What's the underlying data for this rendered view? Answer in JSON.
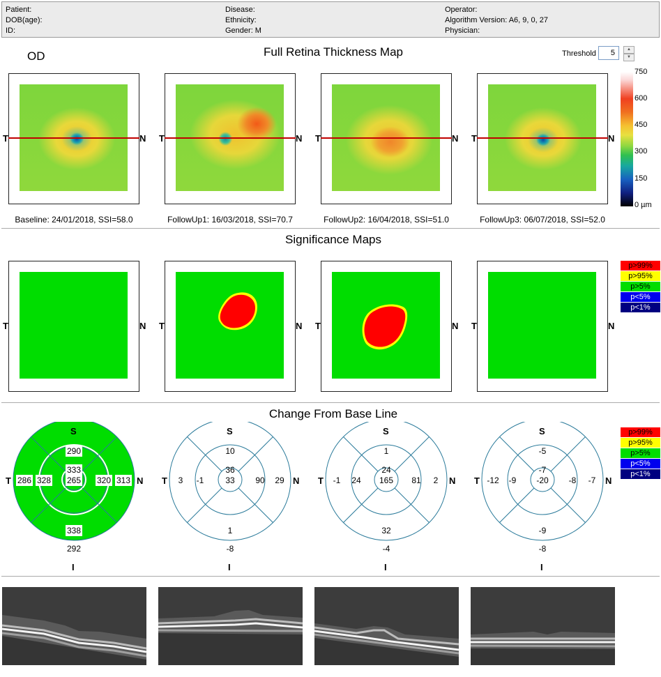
{
  "header": {
    "patient_label": "Patient:",
    "dob_label": "DOB(age):",
    "id_label": "ID:",
    "disease_label": "Disease:",
    "ethnicity_label": "Ethnicity:",
    "gender_label": "Gender: M",
    "operator_label": "Operator:",
    "algorithm_label": "Algorithm Version: A6, 9, 0, 27",
    "physician_label": "Physician:"
  },
  "eye": "OD",
  "thickness": {
    "title": "Full Retina Thickness Map",
    "threshold_label": "Threshold",
    "threshold_value": "5",
    "t_label": "T",
    "n_label": "N",
    "captions": [
      "Baseline: 24/01/2018, SSI=58.0",
      "FollowUp1: 16/03/2018, SSI=70.7",
      "FollowUp2: 16/04/2018, SSI=51.0",
      "FollowUp3: 06/07/2018, SSI=52.0"
    ],
    "scale": [
      "750",
      "600",
      "450",
      "300",
      "150",
      "0 µm"
    ]
  },
  "significance": {
    "title": "Significance Maps",
    "legend": [
      {
        "label": "p>99%",
        "color": "#ff0000",
        "text_color": "#000"
      },
      {
        "label": "p>95%",
        "color": "#ffff00",
        "text_color": "#000"
      },
      {
        "label": "p>5%",
        "color": "#00dd00",
        "text_color": "#000"
      },
      {
        "label": "p<5%",
        "color": "#0000ee",
        "text_color": "#fff"
      },
      {
        "label": "p<1%",
        "color": "#000080",
        "text_color": "#fff"
      }
    ]
  },
  "change": {
    "title": "Change From Base Line",
    "s_label": "S",
    "i_label": "I",
    "t_label": "T",
    "n_label": "N",
    "grids": [
      {
        "outer_s": "290",
        "inner_s": "333",
        "outer_t": "286",
        "inner_t": "328",
        "center": "265",
        "inner_n": "320",
        "outer_n": "313",
        "inner_i": "338",
        "outer_i": "292"
      },
      {
        "outer_s": "10",
        "inner_s": "36",
        "outer_t": "3",
        "inner_t": "-1",
        "center": "33",
        "inner_n": "90",
        "outer_n": "29",
        "inner_i": "1",
        "outer_i": "-8"
      },
      {
        "outer_s": "1",
        "inner_s": "24",
        "outer_t": "-1",
        "inner_t": "24",
        "center": "165",
        "inner_n": "81",
        "outer_n": "2",
        "inner_i": "32",
        "outer_i": "-4"
      },
      {
        "outer_s": "-5",
        "inner_s": "-7",
        "outer_t": "-12",
        "inner_t": "-9",
        "center": "-20",
        "inner_n": "-8",
        "outer_n": "-7",
        "inner_i": "-9",
        "outer_i": "-8"
      }
    ]
  },
  "colors": {
    "green": "#00dd00",
    "red": "#ff0000",
    "yellow": "#ffff00",
    "grid_line": "#2a7a9a",
    "scan_line": "#c00000"
  }
}
